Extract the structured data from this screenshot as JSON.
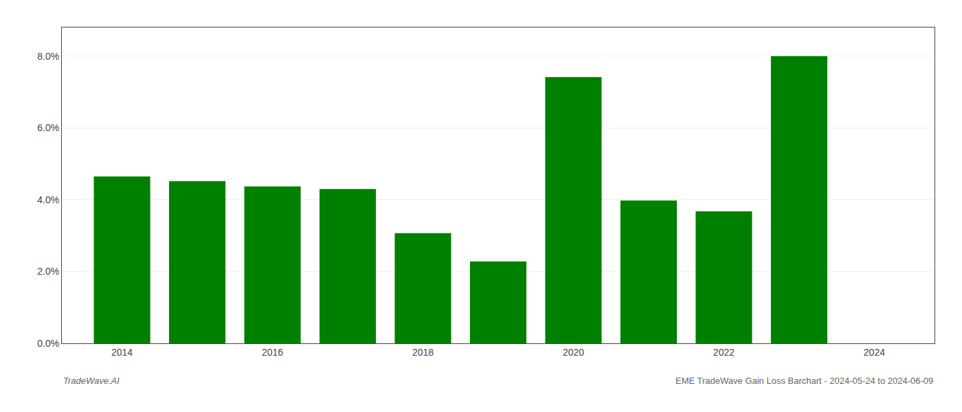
{
  "chart_data": {
    "type": "bar",
    "x": [
      2014,
      2015,
      2016,
      2017,
      2018,
      2019,
      2020,
      2021,
      2022,
      2023
    ],
    "values": [
      0.0465,
      0.0452,
      0.0437,
      0.043,
      0.0307,
      0.0228,
      0.0742,
      0.0398,
      0.0368,
      0.08
    ],
    "color": "#008000",
    "xlim": [
      2013.2,
      2024.8
    ],
    "xticks": [
      2014,
      2016,
      2018,
      2020,
      2022,
      2024
    ],
    "ylim": [
      0,
      0.088
    ],
    "yticks": [
      {
        "value": 0.0,
        "label": "0.0%"
      },
      {
        "value": 0.02,
        "label": "2.0%"
      },
      {
        "value": 0.04,
        "label": "4.0%"
      },
      {
        "value": 0.06,
        "label": "6.0%"
      },
      {
        "value": 0.08,
        "label": "8.0%"
      }
    ],
    "grid": "y",
    "annotations": [
      "TradeWave.AI",
      "EME TradeWave Gain Loss Barchart - 2024-05-24 to 2024-06-09"
    ]
  }
}
